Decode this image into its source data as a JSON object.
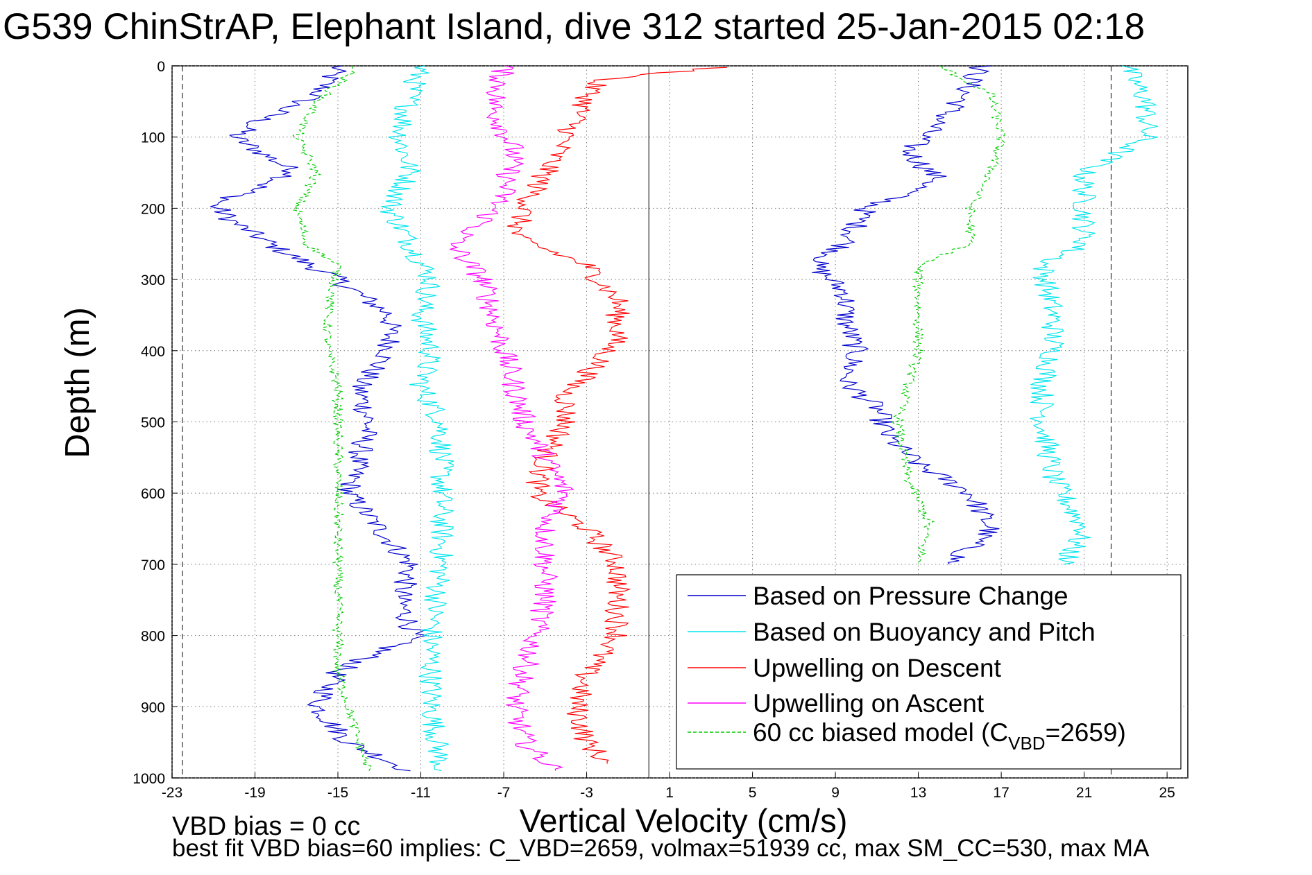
{
  "chart_data": {
    "type": "line",
    "title": "G539 ChinStrAP, Elephant Island, dive 312 started 25-Jan-2015 02:18",
    "xlabel": "Vertical Velocity (cm/s)",
    "ylabel": "Depth (m)",
    "xlim": [
      -23,
      26
    ],
    "ylim": [
      0,
      1000
    ],
    "y_reversed": true,
    "x_ticks": [
      -23,
      -19,
      -15,
      -11,
      -7,
      -3,
      1,
      5,
      9,
      13,
      17,
      21,
      25
    ],
    "y_ticks": [
      0,
      100,
      200,
      300,
      400,
      500,
      600,
      700,
      800,
      900,
      1000
    ],
    "grid": true,
    "reference_lines": {
      "zero_velocity": 0,
      "dashed_limits": [
        -22.5,
        22.3
      ]
    },
    "legend_position": "bottom-right",
    "notes": [
      "VBD bias = 0 cc",
      "best fit VBD bias=60 implies: C_VBD=2659, volmax=51939 cc, max SM_CC=530, max MA"
    ],
    "series": [
      {
        "name": "Based on Pressure Change",
        "color": "#0000cd",
        "style": "solid",
        "profiles": [
          {
            "depth": [
              0,
              40,
              80,
              100,
              150,
              195,
              220,
              255,
              300,
              350,
              400,
              450,
              500,
              550,
              600,
              650,
              700,
              750,
              800,
              850,
              900,
              950,
              990
            ],
            "velocity": [
              -15,
              -16,
              -19,
              -20,
              -17,
              -21,
              -20,
              -18,
              -15,
              -12.5,
              -12.5,
              -14,
              -13.5,
              -14,
              -14.5,
              -13,
              -11.5,
              -12,
              -11.3,
              -15,
              -16,
              -14.5,
              -11.5
            ]
          },
          {
            "depth": [
              0,
              50,
              120,
              160,
              200,
              250,
              280,
              320,
              360,
              400,
              445,
              480,
              520,
              560,
              600,
              650,
              700
            ],
            "velocity": [
              16,
              15,
              12.5,
              14,
              10.5,
              9.5,
              8,
              9.5,
              9.5,
              10,
              9.5,
              11,
              11.5,
              13,
              15.5,
              16.5,
              14.5
            ]
          }
        ]
      },
      {
        "name": "Based on Buoyancy and Pitch",
        "color": "#00e5ee",
        "style": "solid",
        "profiles": [
          {
            "depth": [
              0,
              40,
              100,
              150,
              200,
              250,
              300,
              350,
              400,
              450,
              500,
              600,
              700,
              800,
              900,
              990
            ],
            "velocity": [
              -11,
              -11.5,
              -12,
              -11.5,
              -12.5,
              -11.5,
              -10.5,
              -11,
              -10.5,
              -11,
              -10,
              -10,
              -10,
              -10.5,
              -10.5,
              -10
            ]
          },
          {
            "depth": [
              0,
              50,
              100,
              150,
              200,
              250,
              280,
              350,
              400,
              450,
              500,
              580,
              650,
              700
            ],
            "velocity": [
              23,
              24,
              24,
              21,
              21,
              21,
              19,
              19.5,
              19.5,
              19,
              19,
              19.5,
              21,
              20
            ]
          }
        ]
      },
      {
        "name": "Upwelling on Descent",
        "color": "#ff0000",
        "style": "solid",
        "profiles": [
          {
            "depth": [
              2,
              20,
              100,
              200,
              240,
              280,
              330,
              380,
              420,
              460,
              500,
              550,
              600,
              650,
              700,
              750,
              800,
              850,
              900,
              950,
              980
            ],
            "velocity": [
              3.5,
              -2.5,
              -4,
              -6,
              -6.5,
              -3,
              -1.5,
              -1.5,
              -2.5,
              -4,
              -4,
              -5,
              -5.5,
              -3,
              -1.5,
              -1.5,
              -1.5,
              -3,
              -3.5,
              -3,
              -2
            ]
          }
        ]
      },
      {
        "name": "Upwelling on Ascent",
        "color": "#ff00ff",
        "style": "solid",
        "profiles": [
          {
            "depth": [
              0,
              60,
              120,
              180,
              220,
              250,
              300,
              350,
              400,
              450,
              500,
              550,
              600,
              650,
              700,
              750,
              800,
              850,
              900,
              950,
              990
            ],
            "velocity": [
              -7,
              -7.5,
              -6.5,
              -7,
              -8,
              -9.5,
              -8,
              -7.5,
              -7,
              -6.5,
              -6,
              -5,
              -4,
              -5,
              -5,
              -5,
              -5.5,
              -6,
              -6.5,
              -6,
              -4.5
            ]
          }
        ]
      },
      {
        "name": "60 cc biased model",
        "legend_label": "60 cc biased model (C",
        "legend_subscript": "VBD",
        "legend_suffix": "=2659)",
        "color": "#00cd00",
        "style": "dashed",
        "profiles": [
          {
            "depth": [
              0,
              50,
              100,
              150,
              200,
              250,
              280,
              350,
              400,
              450,
              500,
              550,
              600,
              700,
              800,
              850,
              900,
              950,
              990
            ],
            "velocity": [
              -14,
              -16,
              -17,
              -16,
              -17,
              -16.5,
              -15,
              -15.5,
              -15.5,
              -15,
              -15,
              -15,
              -15,
              -15,
              -15,
              -15,
              -14.5,
              -14,
              -13.5
            ]
          },
          {
            "depth": [
              0,
              40,
              100,
              150,
              200,
              250,
              280,
              350,
              400,
              450,
              500,
              580,
              640,
              700
            ],
            "velocity": [
              14,
              16.5,
              17,
              16.5,
              15.5,
              15.5,
              13,
              13,
              13,
              12.5,
              12,
              12.5,
              13.5,
              13
            ]
          }
        ]
      }
    ]
  }
}
